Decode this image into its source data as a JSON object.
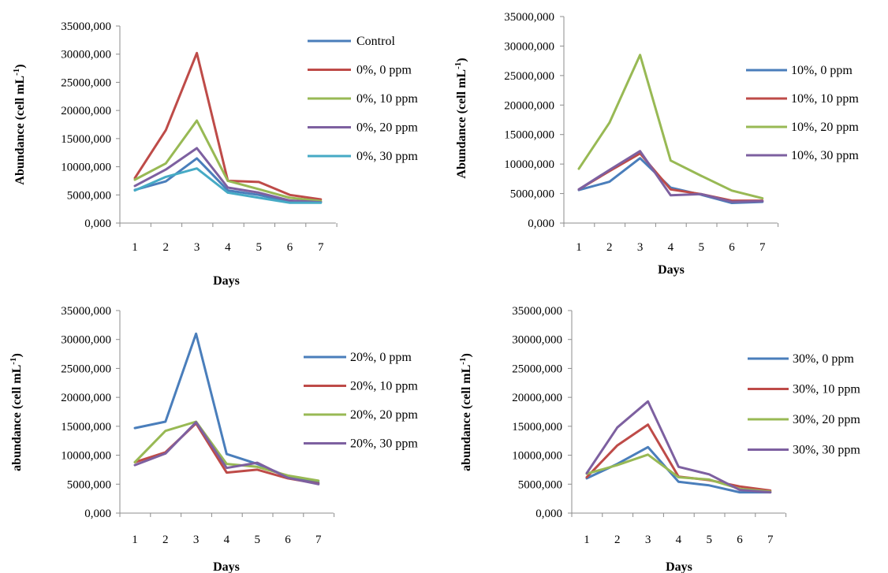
{
  "chart_data": [
    {
      "type": "line",
      "title": "",
      "xlabel": "Days",
      "ylabel": "Abundance (cell mL-1)",
      "categories": [
        "1",
        "2",
        "3",
        "4",
        "5",
        "6",
        "7"
      ],
      "yticks": [
        "0,000",
        "5000,000",
        "10000,000",
        "15000,000",
        "20000,000",
        "25000,000",
        "30000,000",
        "35000,000"
      ],
      "ylim": [
        0,
        35000
      ],
      "grid": false,
      "legend_position": "right",
      "series": [
        {
          "name": "Control",
          "color": "#4a7ebb",
          "values": [
            5900,
            7400,
            11500,
            5800,
            5000,
            3800,
            3800
          ]
        },
        {
          "name": "0%, 0 ppm",
          "color": "#be4b48",
          "values": [
            8000,
            16500,
            30200,
            7500,
            7300,
            5000,
            4200
          ]
        },
        {
          "name": "0%, 10 ppm",
          "color": "#98b954",
          "values": [
            7700,
            10600,
            18200,
            7500,
            6000,
            4500,
            3900
          ]
        },
        {
          "name": "0%, 20 ppm",
          "color": "#7d60a0",
          "values": [
            6600,
            9500,
            13300,
            6300,
            5400,
            4000,
            3700
          ]
        },
        {
          "name": "0%, 30 ppm",
          "color": "#46aac5",
          "values": [
            5800,
            8200,
            9700,
            5400,
            4500,
            3600,
            3600
          ]
        }
      ]
    },
    {
      "type": "line",
      "title": "",
      "xlabel": "Days",
      "ylabel": "Abundance (cell mL-1)",
      "categories": [
        "1",
        "2",
        "3",
        "4",
        "5",
        "6",
        "7"
      ],
      "yticks": [
        "0,000",
        "5000,000",
        "10000,000",
        "15000,000",
        "20000,000",
        "25000,000",
        "30000,000",
        "35000,000"
      ],
      "ylim": [
        0,
        35000
      ],
      "grid": false,
      "legend_position": "right",
      "series": [
        {
          "name": "10%, 0 ppm",
          "color": "#4a7ebb",
          "values": [
            5600,
            7000,
            11000,
            6000,
            4800,
            3400,
            3600
          ]
        },
        {
          "name": "10%, 10 ppm",
          "color": "#be4b48",
          "values": [
            5700,
            8800,
            11800,
            5700,
            4900,
            3800,
            3800
          ]
        },
        {
          "name": "10%, 20 ppm",
          "color": "#98b954",
          "values": [
            9200,
            17000,
            28500,
            10600,
            8000,
            5500,
            4200
          ]
        },
        {
          "name": "10%, 30 ppm",
          "color": "#7d60a0",
          "values": [
            5700,
            9000,
            12200,
            4700,
            4900,
            3600,
            3700
          ]
        }
      ]
    },
    {
      "type": "line",
      "title": "",
      "xlabel": "Days",
      "ylabel": "abundance (cell mL-1)",
      "categories": [
        "1",
        "2",
        "3",
        "4",
        "5",
        "6",
        "7"
      ],
      "yticks": [
        "0,000",
        "5000,000",
        "10000,000",
        "15000,000",
        "20000,000",
        "25000,000",
        "30000,000",
        "35000,000"
      ],
      "ylim": [
        0,
        35000
      ],
      "grid": false,
      "legend_position": "right",
      "series": [
        {
          "name": "20%, 0 ppm",
          "color": "#4a7ebb",
          "values": [
            14700,
            15800,
            31000,
            10200,
            8500,
            6300,
            5300
          ]
        },
        {
          "name": "20%, 10 ppm",
          "color": "#be4b48",
          "values": [
            8800,
            10500,
            15500,
            7000,
            7500,
            6000,
            5100
          ]
        },
        {
          "name": "20%, 20 ppm",
          "color": "#98b954",
          "values": [
            8800,
            14200,
            15800,
            8500,
            8000,
            6500,
            5600
          ]
        },
        {
          "name": "20%, 30 ppm",
          "color": "#7d60a0",
          "values": [
            8300,
            10300,
            15700,
            7800,
            8700,
            6100,
            5000
          ]
        }
      ]
    },
    {
      "type": "line",
      "title": "",
      "xlabel": "Days",
      "ylabel": "abundance (cell mL-1)",
      "categories": [
        "1",
        "2",
        "3",
        "4",
        "5",
        "6",
        "7"
      ],
      "yticks": [
        "0,000",
        "5000,000",
        "10000,000",
        "15000,000",
        "20000,000",
        "25000,000",
        "30000,000",
        "35000,000"
      ],
      "ylim": [
        0,
        35000
      ],
      "grid": false,
      "legend_position": "right",
      "series": [
        {
          "name": "30%, 0 ppm",
          "color": "#4a7ebb",
          "values": [
            6000,
            8500,
            11400,
            5400,
            4800,
            3600,
            3600
          ]
        },
        {
          "name": "30%, 10 ppm",
          "color": "#be4b48",
          "values": [
            6200,
            11700,
            15300,
            6300,
            5700,
            4600,
            3900
          ]
        },
        {
          "name": "30%, 20 ppm",
          "color": "#98b954",
          "values": [
            6800,
            8300,
            10100,
            6200,
            5800,
            4200,
            3700
          ]
        },
        {
          "name": "30%, 30 ppm",
          "color": "#7d60a0",
          "values": [
            6900,
            14800,
            19300,
            8000,
            6700,
            4000,
            3600
          ]
        }
      ]
    }
  ]
}
